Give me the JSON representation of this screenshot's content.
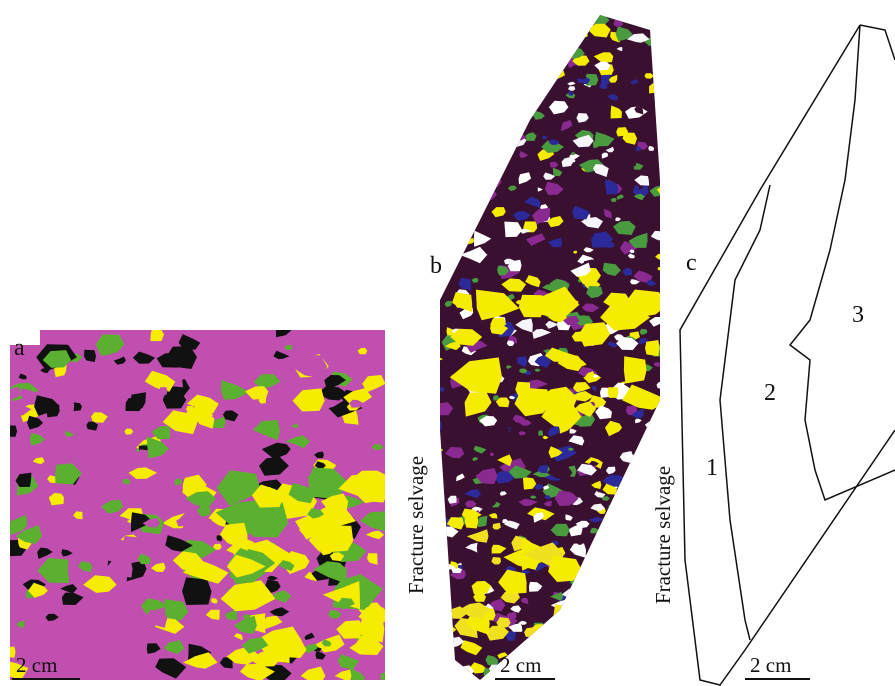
{
  "panels": [
    {
      "label": "a",
      "scale_bar": "2 cm"
    },
    {
      "label": "b",
      "scale_bar": "2 cm",
      "side_label": "Fracture selvage"
    },
    {
      "label": "c",
      "scale_bar": "2 cm",
      "side_label": "Fracture selvage",
      "zones": [
        "1",
        "2",
        "3"
      ]
    }
  ]
}
